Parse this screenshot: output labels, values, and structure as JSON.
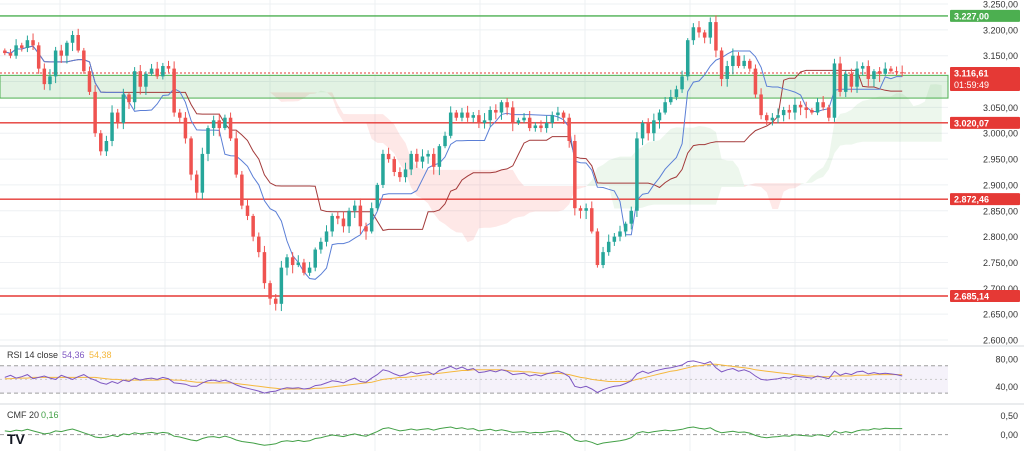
{
  "chart_data": [
    {
      "type": "candlestick",
      "title": "",
      "ylim": [
        2600,
        3250
      ],
      "y_ticks": [
        "3.250,00",
        "3.200,00",
        "3.150,00",
        "3.100,00",
        "3.050,00",
        "3.000,00",
        "2.950,00",
        "2.900,00",
        "2.850,00",
        "2.800,00",
        "2.750,00",
        "2.700,00",
        "2.650,00",
        "2.600,00"
      ],
      "y_tick_values": [
        3250,
        3200,
        3150,
        3100,
        3050,
        3000,
        2950,
        2900,
        2850,
        2800,
        2750,
        2700,
        2650,
        2600
      ],
      "grid": true,
      "horizontal_levels": [
        {
          "value": 3227.0,
          "label": "3.227,00",
          "color": "#4caf50"
        },
        {
          "value": 3020.07,
          "label": "3.020,07",
          "color": "#e53935"
        },
        {
          "value": 2872.46,
          "label": "2.872,46",
          "color": "#e53935"
        },
        {
          "value": 2685.14,
          "label": "2.685,14",
          "color": "#e53935"
        }
      ],
      "support_zone": [
        3068,
        3112
      ],
      "last_price": {
        "value": 3116.61,
        "label": "3.116,61",
        "countdown": "01:59:49",
        "color": "#e53935"
      },
      "close": [
        3155,
        3150,
        3170,
        3165,
        3180,
        3170,
        3125,
        3095,
        3110,
        3160,
        3150,
        3175,
        3190,
        3160,
        3120,
        3080,
        3000,
        2965,
        2985,
        3040,
        3020,
        3075,
        3060,
        3120,
        3090,
        3115,
        3125,
        3110,
        3130,
        3125,
        3040,
        3030,
        2990,
        2920,
        2885,
        2960,
        3010,
        3025,
        3010,
        3030,
        2990,
        2920,
        2860,
        2840,
        2800,
        2770,
        2710,
        2680,
        2670,
        2740,
        2760,
        2745,
        2750,
        2730,
        2740,
        2775,
        2790,
        2810,
        2840,
        2835,
        2820,
        2850,
        2860,
        2820,
        2810,
        2855,
        2900,
        2960,
        2950,
        2925,
        2915,
        2930,
        2960,
        2945,
        2955,
        2960,
        2935,
        2975,
        2995,
        3040,
        3030,
        3040,
        3030,
        3035,
        3020,
        3025,
        3045,
        3040,
        3060,
        3050,
        3020,
        3025,
        3030,
        3010,
        3015,
        3010,
        3020,
        3035,
        3040,
        3030,
        2985,
        2855,
        2850,
        2855,
        2810,
        2745,
        2770,
        2790,
        2800,
        2810,
        2825,
        2850,
        2990,
        3020,
        3000,
        3025,
        3040,
        3060,
        3070,
        3085,
        3110,
        3180,
        3205,
        3195,
        3185,
        3215,
        3160,
        3105,
        3130,
        3150,
        3130,
        3140,
        3125,
        3075,
        3035,
        3025,
        3030,
        3035,
        3045,
        3040,
        3055,
        3050,
        3045,
        3040,
        3060,
        3050,
        3030,
        3135,
        3080,
        3115,
        3090,
        3125,
        3130,
        3105,
        3120,
        3115,
        3125,
        3120,
        3118,
        3116.61
      ]
    },
    {
      "type": "line",
      "indicator": "RSI",
      "label": "RSI 14 close",
      "value_a": "54,36",
      "value_b": "54,38",
      "ylim": [
        20,
        90
      ],
      "y_ticks": [
        "80,00",
        "40,00"
      ],
      "y_tick_values": [
        80,
        40
      ],
      "band": [
        30,
        70
      ],
      "series": [
        {
          "values": [
            53,
            56,
            52,
            54,
            57,
            51,
            53,
            55,
            52,
            50,
            56,
            53,
            50,
            54,
            57,
            52,
            49,
            45,
            43,
            47,
            44,
            49,
            47,
            52,
            49,
            51,
            52,
            50,
            53,
            51,
            45,
            44,
            43,
            40,
            40,
            45,
            48,
            49,
            47,
            49,
            46,
            42,
            39,
            37,
            35,
            33,
            30,
            32,
            33,
            36,
            38,
            37,
            38,
            36,
            37,
            41,
            42,
            45,
            48,
            47,
            45,
            49,
            52,
            47,
            46,
            52,
            57,
            64,
            62,
            58,
            55,
            57,
            61,
            58,
            60,
            61,
            57,
            63,
            66,
            69,
            65,
            68,
            64,
            66,
            60,
            61,
            63,
            61,
            64,
            62,
            57,
            58,
            59,
            55,
            57,
            55,
            58,
            60,
            62,
            59,
            54,
            40,
            38,
            40,
            36,
            31,
            35,
            38,
            40,
            41,
            44,
            48,
            58,
            62,
            59,
            62,
            64,
            66,
            67,
            69,
            71,
            76,
            77,
            75,
            73,
            76,
            67,
            61,
            64,
            66,
            62,
            64,
            61,
            55,
            50,
            49,
            50,
            51,
            53,
            52,
            55,
            54,
            53,
            52,
            55,
            53,
            51,
            62,
            56,
            59,
            57,
            61,
            62,
            58,
            60,
            58,
            59,
            58,
            57,
            55
          ]
        },
        {
          "values": [
            51,
            51,
            52,
            52,
            52,
            53,
            53,
            53,
            53,
            53,
            53,
            53,
            53,
            53,
            53,
            53,
            53,
            52,
            51,
            50,
            50,
            49,
            49,
            49,
            49,
            49,
            49,
            49,
            50,
            50,
            49,
            49,
            48,
            47,
            46,
            46,
            45,
            45,
            45,
            45,
            45,
            44,
            43,
            42,
            41,
            40,
            39,
            38,
            37,
            36,
            36,
            36,
            36,
            36,
            36,
            37,
            37,
            38,
            39,
            40,
            41,
            42,
            43,
            44,
            45,
            46,
            48,
            50,
            51,
            52,
            53,
            53,
            54,
            55,
            56,
            57,
            58,
            59,
            60,
            61,
            62,
            63,
            63,
            64,
            64,
            64,
            64,
            64,
            64,
            63,
            62,
            62,
            61,
            61,
            60,
            59,
            59,
            59,
            59,
            58,
            57,
            55,
            53,
            52,
            50,
            49,
            48,
            47,
            47,
            47,
            47,
            48,
            50,
            52,
            54,
            56,
            58,
            60,
            62,
            63,
            65,
            67,
            69,
            70,
            71,
            72,
            72,
            71,
            70,
            69,
            68,
            67,
            66,
            64,
            63,
            62,
            61,
            60,
            59,
            58,
            57,
            56,
            55,
            55,
            54,
            54,
            54,
            55,
            55,
            55,
            55,
            56,
            56,
            56,
            57,
            57,
            57,
            57,
            57,
            57
          ]
        }
      ]
    },
    {
      "type": "line",
      "indicator": "CMF",
      "label": "CMF 20",
      "value": "0,16",
      "ylim": [
        -0.35,
        0.7
      ],
      "y_ticks": [
        "0,50",
        "0,00"
      ],
      "y_tick_values": [
        0.5,
        0.0
      ],
      "zero_line": true,
      "series": [
        {
          "values": [
            0.1,
            0.08,
            0.12,
            0.1,
            0.14,
            0.1,
            0.06,
            0.02,
            0.04,
            0.1,
            0.08,
            0.12,
            0.15,
            0.1,
            0.05,
            0.0,
            -0.06,
            -0.08,
            -0.06,
            -0.02,
            -0.05,
            0.02,
            0.0,
            0.05,
            0.02,
            0.04,
            0.06,
            0.03,
            0.06,
            0.04,
            -0.04,
            -0.06,
            -0.1,
            -0.14,
            -0.16,
            -0.1,
            -0.06,
            -0.05,
            -0.08,
            -0.04,
            -0.08,
            -0.14,
            -0.18,
            -0.2,
            -0.22,
            -0.25,
            -0.28,
            -0.26,
            -0.24,
            -0.18,
            -0.16,
            -0.18,
            -0.15,
            -0.18,
            -0.16,
            -0.1,
            -0.08,
            -0.04,
            -0.01,
            -0.03,
            -0.05,
            -0.01,
            0.02,
            -0.02,
            -0.04,
            0.02,
            0.08,
            0.16,
            0.18,
            0.14,
            0.1,
            0.12,
            0.15,
            0.12,
            0.14,
            0.16,
            0.12,
            0.16,
            0.18,
            0.2,
            0.16,
            0.18,
            0.14,
            0.16,
            0.1,
            0.12,
            0.14,
            0.1,
            0.13,
            0.1,
            0.06,
            0.07,
            0.08,
            0.04,
            0.06,
            0.05,
            0.07,
            0.09,
            0.1,
            0.06,
            0.0,
            -0.14,
            -0.18,
            -0.16,
            -0.2,
            -0.26,
            -0.22,
            -0.2,
            -0.18,
            -0.16,
            -0.13,
            -0.08,
            0.04,
            0.08,
            0.05,
            0.08,
            0.1,
            0.12,
            0.1,
            0.12,
            0.14,
            0.18,
            0.2,
            0.17,
            0.15,
            0.18,
            0.1,
            0.05,
            0.07,
            0.09,
            0.06,
            0.07,
            0.04,
            -0.02,
            -0.06,
            -0.08,
            -0.06,
            -0.05,
            -0.03,
            -0.04,
            0.0,
            -0.02,
            -0.03,
            -0.04,
            0.0,
            -0.02,
            -0.05,
            0.1,
            0.04,
            0.08,
            0.05,
            0.1,
            0.13,
            0.12,
            0.16,
            0.14,
            0.17,
            0.16,
            0.16,
            0.16
          ]
        }
      ]
    }
  ],
  "colors": {
    "up": "#26a69a",
    "down": "#ef5350",
    "tenkan": "#5b7fd6",
    "kijun": "#a33a3a",
    "rsi": "#7e57c2",
    "rsi_ma": "#f5b83d",
    "cmf": "#43a047",
    "grid": "#eef0f3",
    "axis_text": "#333333"
  },
  "watermark": "TV"
}
